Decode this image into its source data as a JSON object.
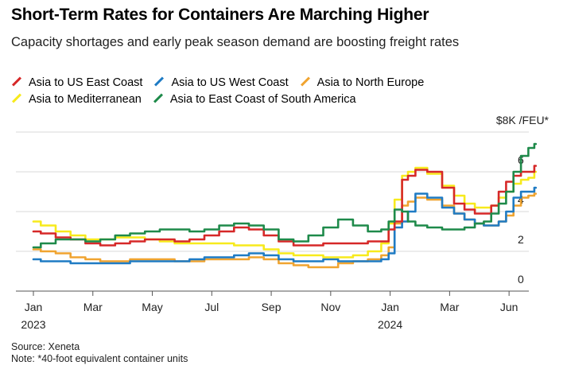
{
  "chart_data": {
    "type": "line",
    "title": "Short-Term Rates for Containers Are Marching Higher",
    "subtitle": "Capacity shortages and early peak season demand are boosting freight rates",
    "y_unit_label": "$8K /FEU*",
    "ylim": [
      0,
      8
    ],
    "y_ticks": [
      {
        "value": 0,
        "label": "0"
      },
      {
        "value": 2,
        "label": "2"
      },
      {
        "value": 4,
        "label": "4"
      },
      {
        "value": 6,
        "label": "6"
      }
    ],
    "xlim": [
      0,
      17.2
    ],
    "x_ticks": [
      {
        "value": 0,
        "label": "Jan",
        "sub": "2023"
      },
      {
        "value": 2,
        "label": "Mar",
        "sub": ""
      },
      {
        "value": 4,
        "label": "May",
        "sub": ""
      },
      {
        "value": 6,
        "label": "Jul",
        "sub": ""
      },
      {
        "value": 8,
        "label": "Sep",
        "sub": ""
      },
      {
        "value": 10,
        "label": "Nov",
        "sub": ""
      },
      {
        "value": 12,
        "label": "Jan",
        "sub": "2024"
      },
      {
        "value": 14,
        "label": "Mar",
        "sub": ""
      },
      {
        "value": 16,
        "label": "Jun",
        "sub": ""
      }
    ],
    "grid": true,
    "legend_position": "top-left",
    "series": [
      {
        "name": "Asia to US East Coast",
        "color": "#d62828",
        "points": [
          [
            0,
            3.0
          ],
          [
            0.5,
            2.9
          ],
          [
            1,
            2.7
          ],
          [
            1.5,
            2.6
          ],
          [
            2,
            2.4
          ],
          [
            2.5,
            2.3
          ],
          [
            3,
            2.4
          ],
          [
            3.5,
            2.5
          ],
          [
            4,
            2.6
          ],
          [
            4.5,
            2.6
          ],
          [
            5,
            2.5
          ],
          [
            5.5,
            2.6
          ],
          [
            6,
            2.8
          ],
          [
            6.5,
            3.0
          ],
          [
            7,
            3.2
          ],
          [
            7.5,
            3.1
          ],
          [
            8,
            2.8
          ],
          [
            8.5,
            2.5
          ],
          [
            9,
            2.3
          ],
          [
            9.5,
            2.3
          ],
          [
            10,
            2.4
          ],
          [
            10.5,
            2.4
          ],
          [
            11,
            2.4
          ],
          [
            11.5,
            2.5
          ],
          [
            11.9,
            2.5
          ],
          [
            12,
            3.1
          ],
          [
            12.3,
            3.5
          ],
          [
            12.5,
            5.6
          ],
          [
            12.7,
            5.8
          ],
          [
            13,
            6.1
          ],
          [
            13.5,
            6.0
          ],
          [
            14,
            5.2
          ],
          [
            14.3,
            4.4
          ],
          [
            14.7,
            4.1
          ],
          [
            15,
            3.9
          ],
          [
            15.3,
            3.9
          ],
          [
            15.5,
            4.3
          ],
          [
            15.8,
            5.0
          ],
          [
            16,
            5.5
          ],
          [
            16.3,
            5.8
          ],
          [
            16.5,
            6.0
          ],
          [
            16.8,
            6.0
          ],
          [
            16.9,
            6.3
          ]
        ]
      },
      {
        "name": "Asia to US West Coast",
        "color": "#1f7bc4",
        "points": [
          [
            0,
            1.6
          ],
          [
            0.5,
            1.5
          ],
          [
            1,
            1.5
          ],
          [
            1.5,
            1.4
          ],
          [
            2,
            1.4
          ],
          [
            2.5,
            1.4
          ],
          [
            3,
            1.4
          ],
          [
            3.5,
            1.5
          ],
          [
            4,
            1.5
          ],
          [
            4.5,
            1.5
          ],
          [
            5,
            1.5
          ],
          [
            5.5,
            1.6
          ],
          [
            6,
            1.7
          ],
          [
            6.5,
            1.7
          ],
          [
            7,
            1.8
          ],
          [
            7.5,
            1.9
          ],
          [
            8,
            1.8
          ],
          [
            8.5,
            1.6
          ],
          [
            9,
            1.5
          ],
          [
            9.5,
            1.5
          ],
          [
            10,
            1.6
          ],
          [
            10.5,
            1.5
          ],
          [
            11,
            1.5
          ],
          [
            11.5,
            1.5
          ],
          [
            11.9,
            1.6
          ],
          [
            12,
            1.9
          ],
          [
            12.3,
            3.2
          ],
          [
            12.5,
            3.5
          ],
          [
            12.7,
            4.0
          ],
          [
            13,
            4.9
          ],
          [
            13.5,
            4.7
          ],
          [
            14,
            4.2
          ],
          [
            14.3,
            3.9
          ],
          [
            14.7,
            3.6
          ],
          [
            15,
            3.4
          ],
          [
            15.3,
            3.3
          ],
          [
            15.5,
            3.3
          ],
          [
            15.8,
            3.5
          ],
          [
            16,
            4.0
          ],
          [
            16.3,
            4.7
          ],
          [
            16.5,
            5.0
          ],
          [
            16.8,
            5.0
          ],
          [
            16.9,
            5.2
          ]
        ]
      },
      {
        "name": "Asia to North Europe",
        "color": "#f0a430",
        "points": [
          [
            0,
            2.1
          ],
          [
            0.5,
            2.0
          ],
          [
            1,
            1.9
          ],
          [
            1.5,
            1.7
          ],
          [
            2,
            1.6
          ],
          [
            2.5,
            1.5
          ],
          [
            3,
            1.5
          ],
          [
            3.5,
            1.6
          ],
          [
            4,
            1.6
          ],
          [
            4.5,
            1.6
          ],
          [
            5,
            1.5
          ],
          [
            5.5,
            1.5
          ],
          [
            6,
            1.6
          ],
          [
            6.5,
            1.6
          ],
          [
            7,
            1.6
          ],
          [
            7.5,
            1.7
          ],
          [
            8,
            1.6
          ],
          [
            8.5,
            1.4
          ],
          [
            9,
            1.3
          ],
          [
            9.5,
            1.2
          ],
          [
            10,
            1.2
          ],
          [
            10.5,
            1.4
          ],
          [
            11,
            1.5
          ],
          [
            11.5,
            1.6
          ],
          [
            11.9,
            1.8
          ],
          [
            12,
            2.2
          ],
          [
            12.3,
            3.4
          ],
          [
            12.5,
            4.3
          ],
          [
            12.7,
            4.5
          ],
          [
            13,
            4.7
          ],
          [
            13.5,
            4.6
          ],
          [
            14,
            4.3
          ],
          [
            14.3,
            3.9
          ],
          [
            14.7,
            3.6
          ],
          [
            15,
            3.4
          ],
          [
            15.3,
            3.3
          ],
          [
            15.5,
            3.3
          ],
          [
            15.8,
            3.5
          ],
          [
            16,
            3.8
          ],
          [
            16.3,
            4.3
          ],
          [
            16.5,
            4.7
          ],
          [
            16.8,
            4.8
          ],
          [
            16.9,
            4.9
          ]
        ]
      },
      {
        "name": "Asia to Mediterranean",
        "color": "#f7ea1c",
        "points": [
          [
            0,
            3.5
          ],
          [
            0.5,
            3.3
          ],
          [
            1,
            3.0
          ],
          [
            1.5,
            2.8
          ],
          [
            2,
            2.6
          ],
          [
            2.5,
            2.6
          ],
          [
            3,
            2.7
          ],
          [
            3.5,
            2.7
          ],
          [
            4,
            2.6
          ],
          [
            4.5,
            2.5
          ],
          [
            5,
            2.4
          ],
          [
            5.5,
            2.4
          ],
          [
            6,
            2.4
          ],
          [
            6.5,
            2.4
          ],
          [
            7,
            2.3
          ],
          [
            7.5,
            2.3
          ],
          [
            8,
            2.1
          ],
          [
            8.5,
            1.9
          ],
          [
            9,
            1.8
          ],
          [
            9.5,
            1.8
          ],
          [
            10,
            1.7
          ],
          [
            10.5,
            1.7
          ],
          [
            11,
            1.8
          ],
          [
            11.5,
            2.0
          ],
          [
            11.9,
            2.4
          ],
          [
            12,
            3.4
          ],
          [
            12.3,
            4.6
          ],
          [
            12.5,
            5.8
          ],
          [
            12.7,
            6.0
          ],
          [
            13,
            6.2
          ],
          [
            13.5,
            5.9
          ],
          [
            14,
            5.3
          ],
          [
            14.3,
            4.8
          ],
          [
            14.7,
            4.4
          ],
          [
            15,
            4.2
          ],
          [
            15.3,
            4.2
          ],
          [
            15.5,
            4.3
          ],
          [
            15.8,
            4.7
          ],
          [
            16,
            5.0
          ],
          [
            16.3,
            5.4
          ],
          [
            16.5,
            5.6
          ],
          [
            16.8,
            5.7
          ],
          [
            16.9,
            6.0
          ]
        ]
      },
      {
        "name": "Asia to East Coast of South America",
        "color": "#1e8a4a",
        "points": [
          [
            0,
            2.2
          ],
          [
            0.5,
            2.4
          ],
          [
            1,
            2.6
          ],
          [
            1.5,
            2.6
          ],
          [
            2,
            2.5
          ],
          [
            2.5,
            2.6
          ],
          [
            3,
            2.8
          ],
          [
            3.5,
            2.9
          ],
          [
            4,
            3.0
          ],
          [
            4.5,
            3.1
          ],
          [
            5,
            3.1
          ],
          [
            5.5,
            3.0
          ],
          [
            6,
            3.1
          ],
          [
            6.5,
            3.3
          ],
          [
            7,
            3.4
          ],
          [
            7.5,
            3.3
          ],
          [
            8,
            3.1
          ],
          [
            8.5,
            2.6
          ],
          [
            9,
            2.5
          ],
          [
            9.5,
            2.8
          ],
          [
            10,
            3.2
          ],
          [
            10.5,
            3.6
          ],
          [
            11,
            3.3
          ],
          [
            11.5,
            3.0
          ],
          [
            11.9,
            3.1
          ],
          [
            12,
            3.5
          ],
          [
            12.3,
            4.1
          ],
          [
            12.5,
            4.0
          ],
          [
            12.7,
            3.5
          ],
          [
            13,
            3.3
          ],
          [
            13.5,
            3.2
          ],
          [
            14,
            3.1
          ],
          [
            14.3,
            3.1
          ],
          [
            14.7,
            3.2
          ],
          [
            15,
            3.4
          ],
          [
            15.3,
            3.5
          ],
          [
            15.5,
            3.9
          ],
          [
            15.8,
            4.4
          ],
          [
            16,
            5.0
          ],
          [
            16.3,
            6.0
          ],
          [
            16.5,
            6.8
          ],
          [
            16.8,
            7.2
          ],
          [
            16.9,
            7.4
          ]
        ]
      }
    ]
  },
  "source": "Source: Xeneta",
  "note": "Note: *40-foot equivalent container units"
}
